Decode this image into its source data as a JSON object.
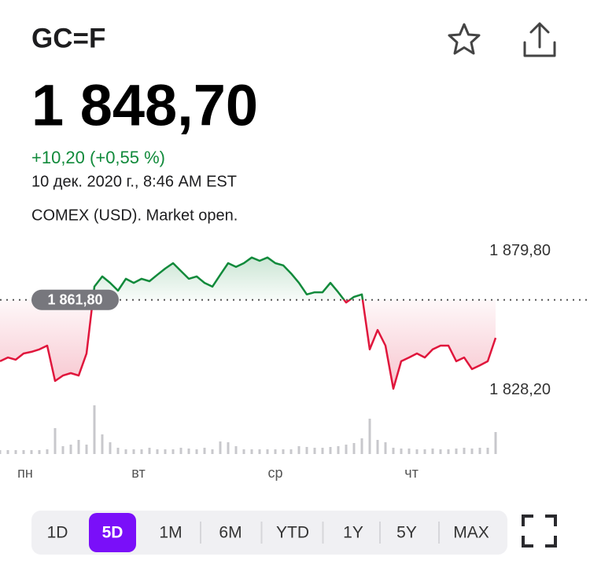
{
  "header": {
    "symbol": "GC=F"
  },
  "quote": {
    "price": "1 848,70",
    "change": "+10,20 (+0,55 %)",
    "timestamp": "10 дек. 2020 г., 8:46 AM EST",
    "exchange": "COMEX (USD). Market open."
  },
  "chart_data": {
    "type": "line",
    "x": [
      0,
      1,
      2,
      3,
      4,
      5,
      6,
      7,
      8,
      9,
      10,
      11,
      12,
      13,
      14,
      15,
      16,
      17,
      18,
      19,
      20,
      21,
      22,
      23,
      24,
      25,
      26,
      27,
      28,
      29,
      30,
      31,
      32,
      33,
      34,
      35,
      36,
      37,
      38,
      39,
      40,
      41,
      42,
      43,
      44,
      45,
      46,
      47,
      48,
      49,
      50,
      51,
      52,
      53,
      54,
      55,
      56,
      57,
      58,
      59,
      60,
      61,
      62,
      63
    ],
    "values": [
      1839.0,
      1840.4,
      1839.6,
      1841.9,
      1842.5,
      1843.4,
      1844.8,
      1831.7,
      1833.7,
      1834.6,
      1833.7,
      1841.9,
      1866.7,
      1870.5,
      1868.1,
      1865.2,
      1869.6,
      1868.1,
      1869.6,
      1868.7,
      1871.1,
      1873.4,
      1875.4,
      1872.5,
      1869.6,
      1870.5,
      1868.1,
      1866.7,
      1871.1,
      1875.4,
      1874.0,
      1875.4,
      1877.5,
      1876.3,
      1877.5,
      1875.4,
      1874.6,
      1871.6,
      1868.1,
      1863.8,
      1864.6,
      1864.6,
      1868.1,
      1864.6,
      1860.8,
      1862.9,
      1863.8,
      1843.4,
      1850.6,
      1844.8,
      1828.8,
      1839.0,
      1840.4,
      1841.9,
      1840.4,
      1843.4,
      1844.8,
      1844.8,
      1839.0,
      1840.4,
      1836.1,
      1837.5,
      1839.0,
      1847.7
    ],
    "volume": [
      5,
      5,
      5,
      5,
      5,
      5,
      6,
      33,
      10,
      12,
      18,
      12,
      62,
      25,
      15,
      8,
      6,
      6,
      6,
      8,
      6,
      6,
      6,
      8,
      7,
      6,
      8,
      6,
      16,
      15,
      10,
      6,
      6,
      6,
      6,
      6,
      6,
      6,
      10,
      9,
      8,
      8,
      9,
      10,
      12,
      14,
      20,
      45,
      18,
      15,
      8,
      7,
      7,
      6,
      6,
      7,
      6,
      6,
      7,
      8,
      7,
      8,
      8,
      28
    ],
    "volume_lim": [
      0,
      70
    ],
    "xlim": [
      0,
      75
    ],
    "xticks": [
      {
        "value": 3.2,
        "label": "пн"
      },
      {
        "value": 17.6,
        "label": "вт"
      },
      {
        "value": 35,
        "label": "ср"
      },
      {
        "value": 52.3,
        "label": "чт"
      }
    ],
    "ylim": [
      1824.4,
      1882.7
    ],
    "yticks": [
      {
        "value": 1879.8,
        "label": "1 879,80"
      },
      {
        "value": 1828.2,
        "label": "1 828,20"
      }
    ],
    "reference": {
      "value": 1861.8,
      "label": "1 861,80"
    },
    "up_color": "#118a3b",
    "down_color": "#e0163c",
    "volume_color": "#c8c8cc"
  },
  "ranges": {
    "options": [
      "1D",
      "5D",
      "1M",
      "6M",
      "YTD",
      "1Y",
      "5Y",
      "MAX"
    ],
    "selected": 1
  }
}
